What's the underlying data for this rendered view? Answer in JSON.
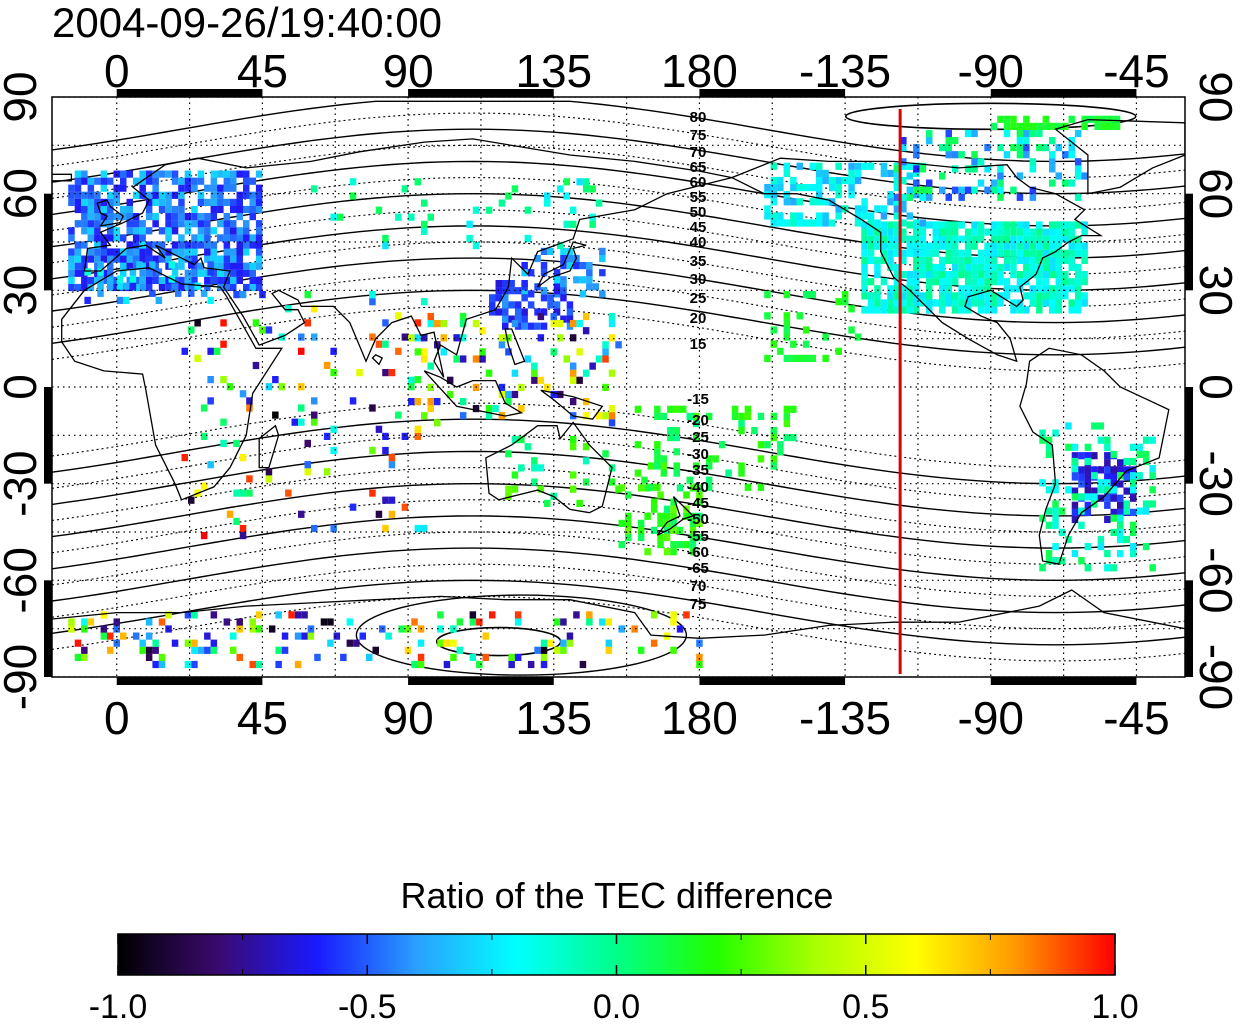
{
  "title": "2004-09-26/19:40:00",
  "map": {
    "lon_ticks": [
      "0",
      "45",
      "90",
      "135",
      "180",
      "-135",
      "-90",
      "-45"
    ],
    "lon_tick_values": [
      0,
      45,
      90,
      135,
      180,
      225,
      270,
      315
    ],
    "lat_ticks": [
      "90",
      "60",
      "30",
      "0",
      "-30",
      "-60",
      "-90"
    ],
    "lat_tick_values": [
      90,
      60,
      30,
      0,
      -30,
      -60,
      -90
    ],
    "lon_range": [
      -20,
      330
    ],
    "lat_range": [
      -90,
      90
    ],
    "grid": "dotted, every 22.5 degrees",
    "marker_line": {
      "lon": 242,
      "color": "#dd0000"
    },
    "contour_labels_north": [
      "80",
      "75",
      "70",
      "65",
      "60",
      "55",
      "50",
      "45",
      "40",
      "35",
      "30",
      "25",
      "20",
      "15"
    ],
    "contour_labels_south": [
      "-15",
      "-20",
      "-25",
      "-30",
      "-35",
      "-40",
      "-45",
      "-50",
      "-55",
      "-60",
      "-65",
      "70",
      "75"
    ]
  },
  "colorbar": {
    "title": "Ratio of the TEC difference",
    "ticks": [
      "-1.0",
      "-0.5",
      "0.0",
      "0.5",
      "1.0"
    ],
    "range": [
      -1.0,
      1.0
    ],
    "colors": [
      "#000000",
      "#3a0a6e",
      "#1a1aff",
      "#2aa0ff",
      "#00ffff",
      "#00ff88",
      "#22ff00",
      "#aaff00",
      "#ffff00",
      "#ff9900",
      "#ff0000"
    ]
  },
  "colors": {
    "coast": "#000000",
    "contour": "#000000",
    "grid": "#000000"
  }
}
